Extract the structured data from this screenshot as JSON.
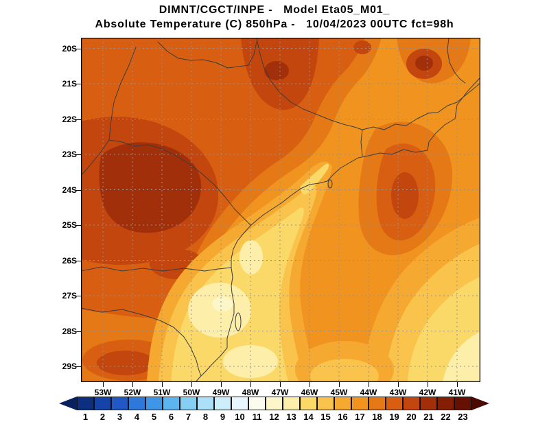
{
  "title": {
    "line1": "DIMNT/CGCT/INPE -   Model Eta05_M01_",
    "line2": "Absolute Temperature (C) 850hPa -   10/04/2023 00UTC fct=98h"
  },
  "axes": {
    "lat": [
      "20S",
      "21S",
      "22S",
      "23S",
      "24S",
      "25S",
      "26S",
      "27S",
      "28S",
      "29S"
    ],
    "lon": [
      "53W",
      "52W",
      "51W",
      "50W",
      "49W",
      "48W",
      "47W",
      "46W",
      "45W",
      "44W",
      "43W",
      "42W",
      "41W"
    ]
  },
  "colorbar": {
    "values": [
      1,
      2,
      3,
      4,
      5,
      6,
      7,
      8,
      9,
      10,
      11,
      12,
      13,
      14,
      15,
      16,
      17,
      18,
      19,
      20,
      21,
      22,
      23
    ],
    "colors": [
      "#0c2f80",
      "#1543a8",
      "#2059c6",
      "#2e78da",
      "#4096e6",
      "#5cb5ee",
      "#85cef4",
      "#abe0f8",
      "#cdeefb",
      "#e7f7fd",
      "#fbfced",
      "#fdf6c8",
      "#fdeeaa",
      "#fbd968",
      "#f9c34c",
      "#f5a930",
      "#f0941f",
      "#e47916",
      "#d85f12",
      "#c2460e",
      "#a1300a",
      "#841f06",
      "#660f03"
    ],
    "arrow_left": "#08205e",
    "arrow_right": "#4a0a02"
  },
  "chart_data": {
    "type": "heatmap",
    "center": "DIMNT/CGCT/INPE",
    "model": "Eta05_M01_",
    "variable": "Absolute Temperature",
    "units": "C",
    "level": "850hPa",
    "valid": "10/04/2023 00UTC",
    "forecast": "98h",
    "title": "DIMNT/CGCT/INPE -  Model Eta05_M01_",
    "subtitle": "Absolute Temperature (C) 850hPa -  10/04/2023 00UTC fct=98h",
    "x_ticks": [
      "53W",
      "52W",
      "51W",
      "50W",
      "49W",
      "48W",
      "47W",
      "46W",
      "45W",
      "44W",
      "43W",
      "42W",
      "41W"
    ],
    "y_ticks": [
      "20S",
      "21S",
      "22S",
      "23S",
      "24S",
      "25S",
      "26S",
      "27S",
      "28S",
      "29S"
    ],
    "colorbar_range": [
      1,
      23
    ],
    "grid_lon_W": [
      53,
      52,
      51,
      50,
      49,
      48,
      47,
      46,
      45,
      44,
      43,
      42,
      41
    ],
    "grid_lat_S": [
      20,
      21,
      22,
      23,
      24,
      25,
      26,
      27,
      28,
      29
    ],
    "values_estimated": [
      [
        19,
        19,
        19,
        19,
        20,
        20,
        20,
        19,
        18,
        17,
        18,
        20,
        18
      ],
      [
        19,
        19,
        19,
        19,
        20,
        20,
        20,
        19,
        18,
        17,
        17,
        18,
        18
      ],
      [
        20,
        20,
        20,
        20,
        20,
        19,
        19,
        18,
        17,
        17,
        17,
        17,
        17
      ],
      [
        20,
        21,
        21,
        20,
        19,
        19,
        18,
        16,
        17,
        18,
        18,
        17,
        17
      ],
      [
        20,
        21,
        21,
        21,
        19,
        18,
        15,
        15,
        17,
        18,
        19,
        18,
        17
      ],
      [
        20,
        21,
        21,
        20,
        18,
        15,
        14,
        15,
        16,
        17,
        19,
        18,
        16
      ],
      [
        19,
        20,
        20,
        18,
        15,
        14,
        14,
        15,
        16,
        17,
        18,
        17,
        16
      ],
      [
        19,
        19,
        18,
        16,
        14,
        13,
        14,
        15,
        16,
        16,
        17,
        16,
        15
      ],
      [
        18,
        18,
        17,
        14,
        13,
        13,
        14,
        15,
        15,
        16,
        16,
        15,
        14
      ],
      [
        19,
        19,
        17,
        15,
        14,
        13,
        14,
        14,
        15,
        15,
        15,
        14,
        13
      ]
    ]
  }
}
